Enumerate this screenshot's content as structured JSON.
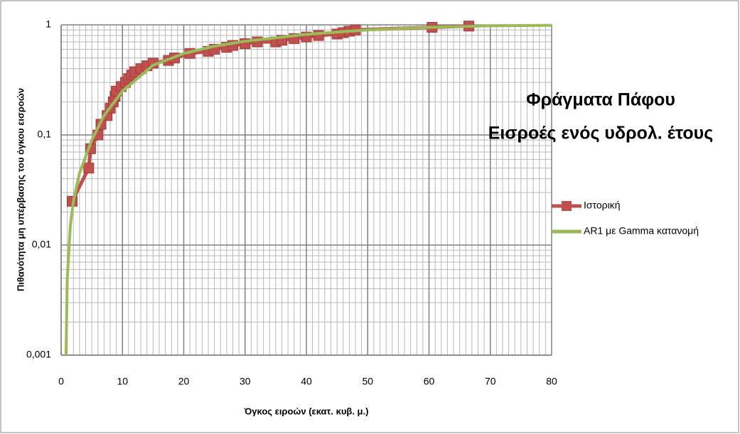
{
  "chart_data": {
    "type": "line",
    "title": [
      "Φράγματα Πάφου",
      "Εισροές ενός υδρολ. έτους"
    ],
    "xlabel": "Όγκος ειροών (εκατ. κυβ. μ.)",
    "ylabel": "Πιθανότητα μη υπέρβασης του όγκου εισροών",
    "xlim": [
      0,
      80
    ],
    "xticks": [
      0,
      10,
      20,
      30,
      40,
      50,
      60,
      70,
      80
    ],
    "ylim": [
      0.001,
      1
    ],
    "yscale": "log",
    "yticks": [
      {
        "value": 0.001,
        "label": "0,001"
      },
      {
        "value": 0.01,
        "label": "0,01"
      },
      {
        "value": 0.1,
        "label": "0,1"
      },
      1
    ],
    "grid": true,
    "minor_grid": true,
    "legend": "right",
    "series": [
      {
        "name": "Ιστορική",
        "color": "#c0504d",
        "marker": "square",
        "x": [
          1.8,
          4.5,
          4.8,
          6.0,
          6.5,
          7.5,
          8.0,
          8.5,
          8.8,
          9.0,
          9.8,
          10.5,
          11.0,
          11.5,
          12.0,
          13.0,
          14.0,
          15.0,
          17.5,
          18.5,
          21.0,
          24.0,
          25.0,
          27.0,
          28.0,
          30.0,
          32.0,
          35.0,
          36.0,
          38.0,
          40.0,
          42.0,
          45.0,
          46.0,
          47.0,
          48.0,
          60.5,
          66.5
        ],
        "values": [
          0.025,
          0.05,
          0.075,
          0.1,
          0.125,
          0.15,
          0.175,
          0.2,
          0.225,
          0.25,
          0.275,
          0.3,
          0.325,
          0.35,
          0.375,
          0.4,
          0.425,
          0.45,
          0.475,
          0.5,
          0.55,
          0.575,
          0.6,
          0.625,
          0.65,
          0.675,
          0.7,
          0.7,
          0.725,
          0.75,
          0.775,
          0.8,
          0.825,
          0.85,
          0.875,
          0.9,
          0.95,
          0.975
        ]
      },
      {
        "name": "AR1 με Gamma  κατανομή",
        "color": "#9bbb59",
        "marker": "none",
        "x": [
          0.8,
          1.0,
          1.5,
          2.0,
          3.0,
          5.0,
          7.0,
          10.0,
          15.0,
          20.0,
          25.0,
          30.0,
          40.0,
          50.0,
          60.0,
          70.0,
          80.0
        ],
        "values": [
          0.001,
          0.005,
          0.015,
          0.025,
          0.045,
          0.09,
          0.15,
          0.25,
          0.43,
          0.55,
          0.64,
          0.71,
          0.82,
          0.9,
          0.95,
          0.98,
          0.99
        ]
      }
    ]
  }
}
